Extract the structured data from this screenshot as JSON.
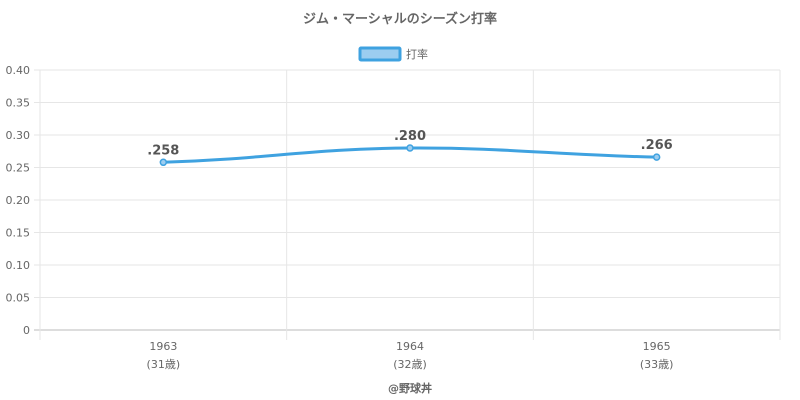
{
  "chart_data": {
    "type": "line",
    "title": "ジム・マーシャルのシーズン打率",
    "categories": [
      "1963",
      "1964",
      "1965"
    ],
    "category_sublabels": [
      "(31歳)",
      "(32歳)",
      "(33歳)"
    ],
    "series": [
      {
        "name": "打率",
        "values": [
          0.258,
          0.28,
          0.266
        ],
        "data_labels": [
          ".258",
          ".280",
          ".266"
        ],
        "color": "#3fa2e0",
        "fill": "#9ccdf0"
      }
    ],
    "ylim": [
      0,
      0.4
    ],
    "yticks": [
      "0",
      "0.05",
      "0.10",
      "0.15",
      "0.20",
      "0.25",
      "0.30",
      "0.35",
      "0.40"
    ],
    "grid": true,
    "legend_position": "top-center",
    "xlabel": "",
    "ylabel": ""
  },
  "credit": "@野球丼"
}
